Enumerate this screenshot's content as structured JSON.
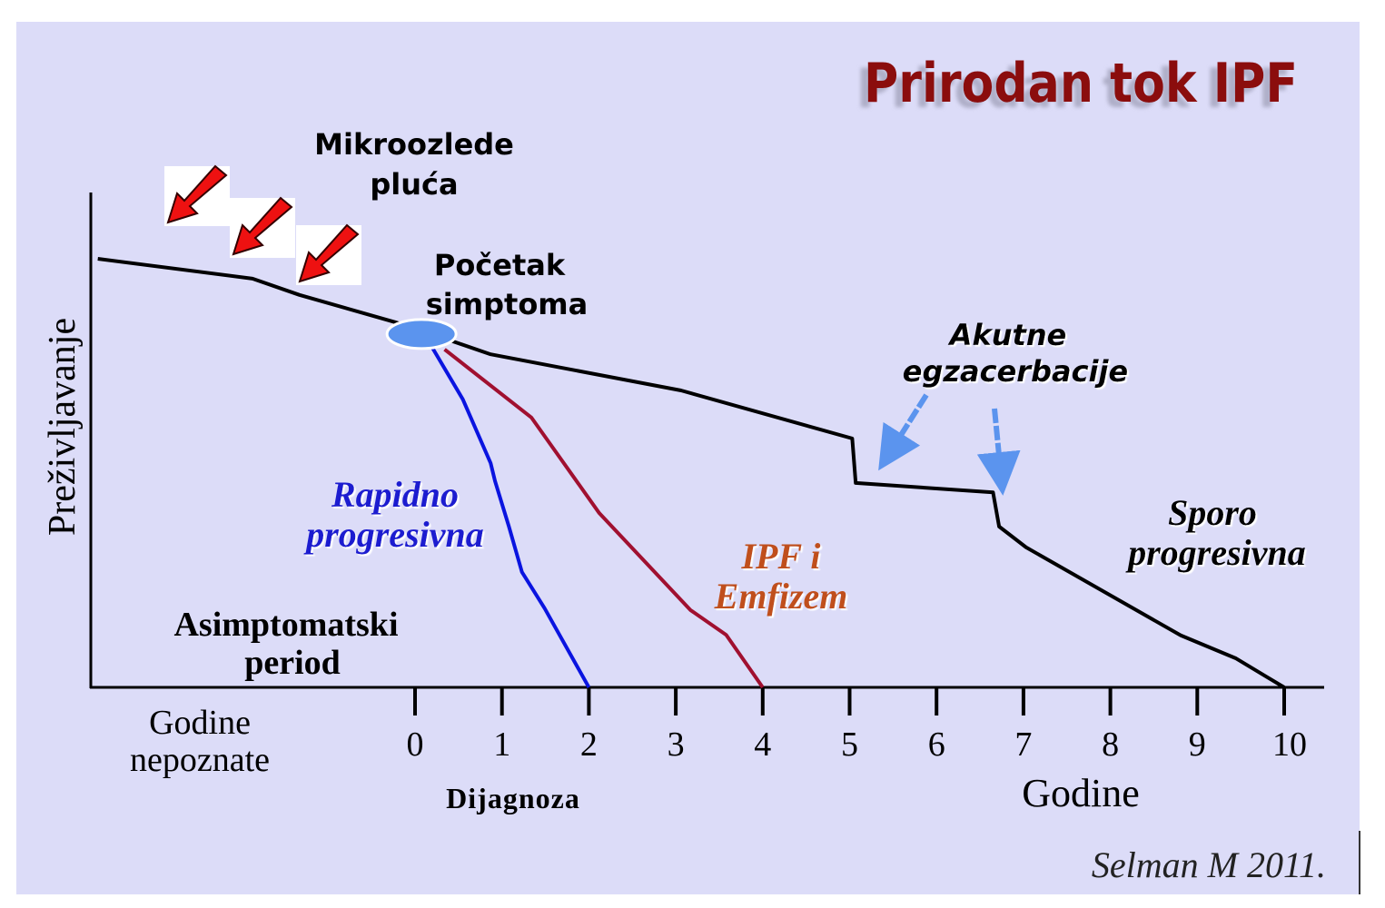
{
  "colors": {
    "background": "#dcdcf8",
    "title": "#8b0a0a",
    "slow": "#000000",
    "rapid": "#0a14e0",
    "emphysema": "#a01030",
    "emphysema_label": "#c0501c",
    "marker": "#5b94ee",
    "exacerbation_arrow": "#5b94ee",
    "microinjury_arrow": "#ee1111"
  },
  "chart_data": {
    "type": "line",
    "title": "Prirodan tok IPF",
    "xlabel": "Godine",
    "ylabel": "Preživljavanje",
    "x_ticks": [
      "0",
      "1",
      "2",
      "3",
      "4",
      "5",
      "6",
      "7",
      "8",
      "9",
      "10"
    ],
    "xlim": [
      -3.7,
      10.5
    ],
    "ylim": [
      0,
      100
    ],
    "pre_axis_label": "Godine nepoznate",
    "diagnosis_label": "Dijagnoza",
    "series": [
      {
        "name": "Sporo progresivna",
        "x": [
          -3.65,
          -1.87,
          -1.33,
          -0.23,
          0.19,
          0.87,
          3.06,
          5.03,
          5.07,
          6.65,
          6.72,
          7.03,
          8.81,
          9.44,
          10.0
        ],
        "y": [
          86.6,
          82.6,
          79.3,
          73.8,
          71.4,
          67.3,
          60.0,
          50.3,
          41.3,
          39.4,
          32.5,
          28.3,
          10.5,
          5.9,
          0
        ]
      },
      {
        "name": "Rapidno progresivna",
        "x": [
          0.2,
          0.55,
          0.87,
          0.92,
          1.08,
          1.23,
          1.49,
          2.0
        ],
        "y": [
          68.6,
          58.2,
          45.3,
          41.7,
          32.5,
          23.3,
          16.0,
          0
        ]
      },
      {
        "name": "IPF i Emfizem",
        "x": [
          0.34,
          1.34,
          2.12,
          3.17,
          3.58,
          4.0
        ],
        "y": [
          68.3,
          54.5,
          35.2,
          15.6,
          10.6,
          0
        ]
      }
    ],
    "annotations": {
      "microinjury_1": "Mikroozlede",
      "microinjury_2": "pluća",
      "onset_1": "Početak",
      "onset_2": "simptoma",
      "acute_1": "Akutne",
      "acute_2": "egzacerbacije",
      "rapid_1": "Rapidno",
      "rapid_2": "progresivna",
      "emph_1": "IPF i",
      "emph_2": "Emfizem",
      "slow_1": "Sporo",
      "slow_2": "progresivna",
      "asym_1": "Asimptomatski",
      "asym_2": "period",
      "pre_1": "Godine",
      "pre_2": "nepoznate",
      "source": "Selman M 2011."
    },
    "onset_point": {
      "x": 0.2,
      "y": 71.4
    }
  }
}
